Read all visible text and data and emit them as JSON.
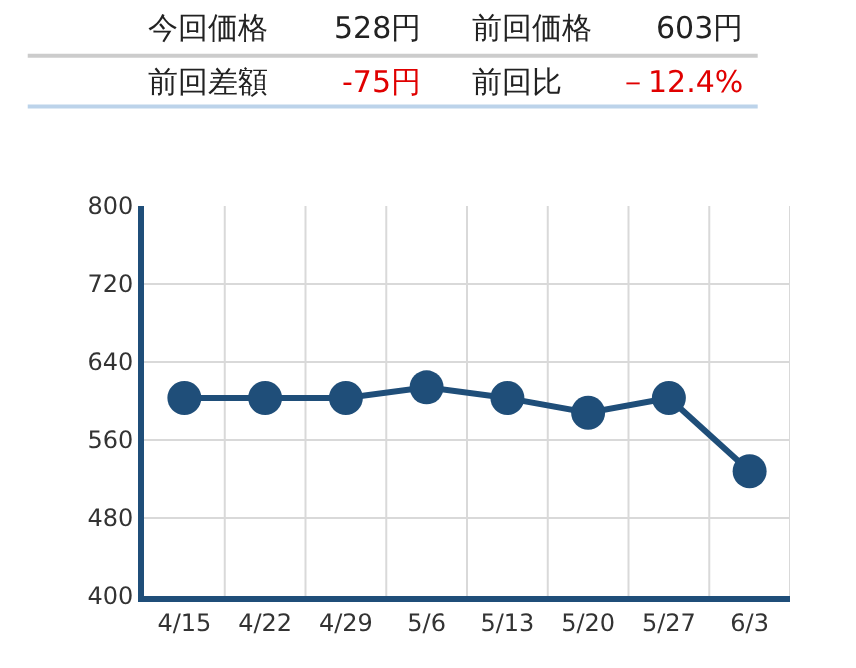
{
  "chart_data": {
    "type": "line",
    "annotations": [
      "今回価格",
      "528円",
      "前回価格",
      "603円",
      "前回差額",
      "-75円",
      "前回比",
      "－12.4%"
    ],
    "categories": [
      "4/15",
      "4/22",
      "4/29",
      "5/6",
      "5/13",
      "5/20",
      "5/27",
      "6/3"
    ],
    "series": [
      {
        "color": "#1f4e79",
        "values": [
          603,
          603,
          603,
          614,
          603,
          588,
          603,
          528
        ]
      }
    ],
    "ylim": [
      400,
      800
    ],
    "yticks": [
      400,
      480,
      560,
      640,
      720,
      800
    ],
    "grid": true,
    "marker": "circle",
    "line_style": "solid",
    "legend": false
  }
}
